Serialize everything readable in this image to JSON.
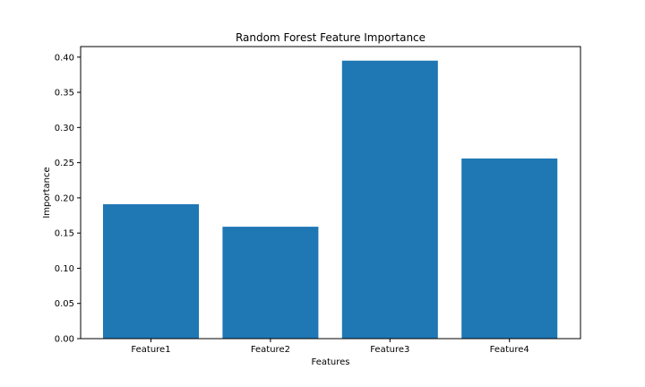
{
  "chart_data": {
    "type": "bar",
    "title": "Random Forest Feature Importance",
    "xlabel": "Features",
    "ylabel": "Importance",
    "categories": [
      "Feature1",
      "Feature2",
      "Feature3",
      "Feature4"
    ],
    "values": [
      0.191,
      0.159,
      0.395,
      0.256
    ],
    "ylim": [
      0,
      0.415
    ],
    "yticks": [
      0.0,
      0.05,
      0.1,
      0.15,
      0.2,
      0.25,
      0.3,
      0.35,
      0.4
    ],
    "ytick_labels": [
      "0.00",
      "0.05",
      "0.10",
      "0.15",
      "0.20",
      "0.25",
      "0.30",
      "0.35",
      "0.40"
    ],
    "bar_color": "#1f77b4",
    "grid": false,
    "legend": "none"
  }
}
